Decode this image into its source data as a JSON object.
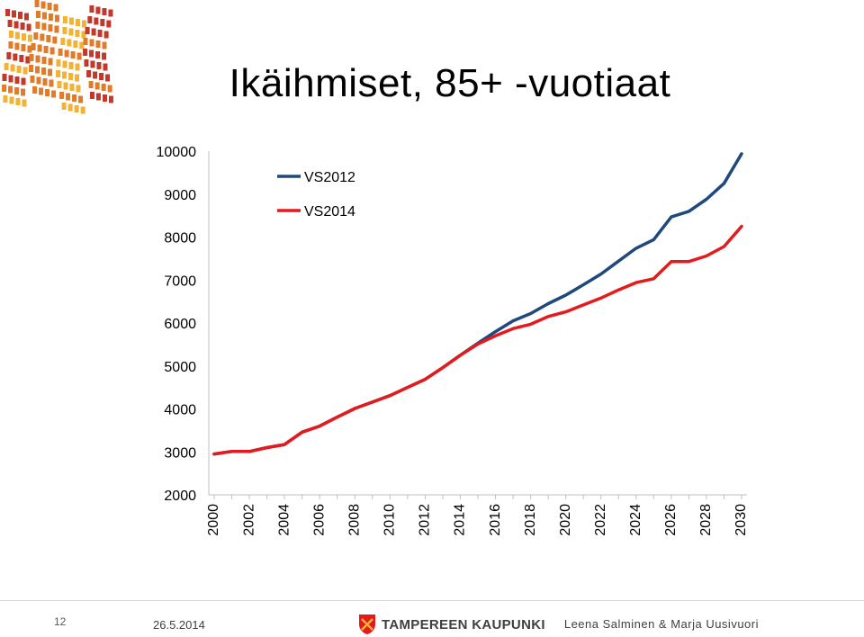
{
  "title": "Ikäihmiset, 85+ -vuotiaat",
  "footer": {
    "page_number": "12",
    "date": "26.5.2014",
    "brand": "TAMPEREEN KAUPUNKI",
    "authors": "Leena Salminen & Marja Uusivuori"
  },
  "colors": {
    "vs2012": "#1f497d",
    "vs2014": "#e41a1c",
    "logo_red": "#c0392b",
    "logo_orange": "#e07b2a",
    "logo_yellow": "#f2b233"
  },
  "chart_data": {
    "type": "line",
    "x": [
      2000,
      2001,
      2002,
      2003,
      2004,
      2005,
      2006,
      2007,
      2008,
      2009,
      2010,
      2011,
      2012,
      2013,
      2014,
      2015,
      2016,
      2017,
      2018,
      2019,
      2020,
      2021,
      2022,
      2023,
      2024,
      2025,
      2026,
      2027,
      2028,
      2029,
      2030
    ],
    "x_tick_labels": [
      "2000",
      "2002",
      "2004",
      "2006",
      "2008",
      "2010",
      "2012",
      "2014",
      "2016",
      "2018",
      "2020",
      "2022",
      "2024",
      "2026",
      "2028",
      "2030"
    ],
    "y_tick_labels": [
      "2000",
      "3000",
      "4000",
      "5000",
      "6000",
      "7000",
      "8000",
      "9000",
      "10000"
    ],
    "ylim": [
      2000,
      10000
    ],
    "grid": false,
    "legend_position": "top-left",
    "series": [
      {
        "name": "VS2012",
        "color": "#1f497d",
        "values": [
          2950,
          3010,
          3010,
          3100,
          3170,
          3460,
          3600,
          3810,
          4010,
          4160,
          4310,
          4500,
          4690,
          4960,
          5250,
          5530,
          5800,
          6050,
          6220,
          6450,
          6650,
          6890,
          7140,
          7440,
          7740,
          7940,
          8470,
          8600,
          8880,
          9250,
          9940
        ]
      },
      {
        "name": "VS2014",
        "color": "#e41a1c",
        "values": [
          2950,
          3010,
          3010,
          3100,
          3170,
          3460,
          3600,
          3810,
          4010,
          4160,
          4310,
          4500,
          4690,
          4960,
          5250,
          5510,
          5700,
          5870,
          5970,
          6150,
          6260,
          6420,
          6580,
          6770,
          6940,
          7030,
          7430,
          7430,
          7560,
          7780,
          8250
        ]
      }
    ]
  }
}
